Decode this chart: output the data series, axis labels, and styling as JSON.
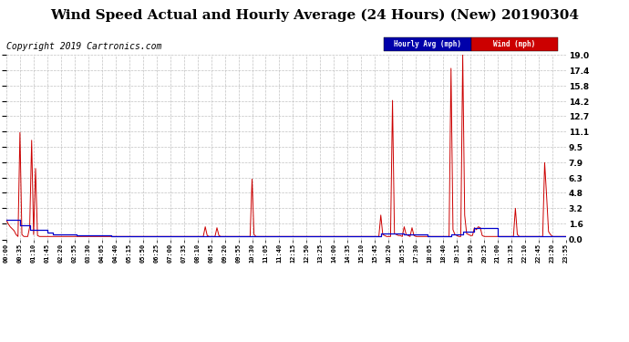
{
  "title": "Wind Speed Actual and Hourly Average (24 Hours) (New) 20190304",
  "copyright": "Copyright 2019 Cartronics.com",
  "ylabel_right_ticks": [
    0.0,
    1.6,
    3.2,
    4.8,
    6.3,
    7.9,
    9.5,
    11.1,
    12.7,
    14.2,
    15.8,
    17.4,
    19.0
  ],
  "ylim": [
    0.0,
    19.0
  ],
  "legend_labels": [
    "Hourly Avg (mph)",
    "Wind (mph)"
  ],
  "wind_color": "#cc0000",
  "hourly_color": "#0000cc",
  "bg_color": "#ffffff",
  "grid_color": "#bbbbbb",
  "title_fontsize": 11,
  "copyright_fontsize": 7,
  "wind_data": [
    [
      0,
      2.0
    ],
    [
      5,
      1.6
    ],
    [
      10,
      1.3
    ],
    [
      15,
      1.1
    ],
    [
      20,
      0.9
    ],
    [
      25,
      0.5
    ],
    [
      30,
      0.3
    ],
    [
      35,
      11.0
    ],
    [
      40,
      0.5
    ],
    [
      45,
      0.3
    ],
    [
      50,
      0.3
    ],
    [
      55,
      0.3
    ],
    [
      60,
      1.3
    ],
    [
      65,
      10.2
    ],
    [
      70,
      0.5
    ],
    [
      75,
      7.3
    ],
    [
      80,
      0.4
    ],
    [
      85,
      0.3
    ],
    [
      90,
      0.3
    ],
    [
      95,
      0.3
    ],
    [
      100,
      0.3
    ],
    [
      105,
      0.3
    ],
    [
      110,
      0.3
    ],
    [
      115,
      0.3
    ],
    [
      120,
      0.3
    ],
    [
      125,
      0.3
    ],
    [
      130,
      0.3
    ],
    [
      135,
      0.3
    ],
    [
      140,
      0.3
    ],
    [
      145,
      0.3
    ],
    [
      150,
      0.3
    ],
    [
      155,
      0.3
    ],
    [
      160,
      0.3
    ],
    [
      165,
      0.3
    ],
    [
      170,
      0.3
    ],
    [
      175,
      0.3
    ],
    [
      180,
      0.3
    ],
    [
      185,
      0.3
    ],
    [
      190,
      0.3
    ],
    [
      195,
      0.3
    ],
    [
      200,
      0.3
    ],
    [
      205,
      0.3
    ],
    [
      210,
      0.3
    ],
    [
      215,
      0.3
    ],
    [
      220,
      0.3
    ],
    [
      225,
      0.3
    ],
    [
      230,
      0.3
    ],
    [
      235,
      0.3
    ],
    [
      240,
      0.3
    ],
    [
      245,
      0.3
    ],
    [
      250,
      0.3
    ],
    [
      255,
      0.3
    ],
    [
      260,
      0.3
    ],
    [
      265,
      0.3
    ],
    [
      270,
      0.3
    ],
    [
      275,
      0.3
    ],
    [
      280,
      0.3
    ],
    [
      285,
      0.3
    ],
    [
      290,
      0.3
    ],
    [
      295,
      0.3
    ],
    [
      300,
      0.3
    ],
    [
      305,
      0.3
    ],
    [
      310,
      0.3
    ],
    [
      315,
      0.3
    ],
    [
      320,
      0.3
    ],
    [
      325,
      0.3
    ],
    [
      330,
      0.3
    ],
    [
      335,
      0.3
    ],
    [
      340,
      0.3
    ],
    [
      345,
      0.3
    ],
    [
      350,
      0.3
    ],
    [
      355,
      0.3
    ],
    [
      360,
      0.3
    ],
    [
      365,
      0.3
    ],
    [
      370,
      0.3
    ],
    [
      375,
      0.3
    ],
    [
      380,
      0.3
    ],
    [
      385,
      0.3
    ],
    [
      390,
      0.3
    ],
    [
      395,
      0.3
    ],
    [
      400,
      0.3
    ],
    [
      405,
      0.3
    ],
    [
      410,
      0.3
    ],
    [
      415,
      0.3
    ],
    [
      420,
      0.3
    ],
    [
      425,
      0.3
    ],
    [
      430,
      0.3
    ],
    [
      435,
      0.3
    ],
    [
      440,
      0.3
    ],
    [
      445,
      0.3
    ],
    [
      450,
      0.3
    ],
    [
      455,
      0.3
    ],
    [
      460,
      0.3
    ],
    [
      465,
      0.3
    ],
    [
      470,
      0.3
    ],
    [
      475,
      0.3
    ],
    [
      480,
      0.3
    ],
    [
      485,
      0.3
    ],
    [
      490,
      0.3
    ],
    [
      495,
      0.3
    ],
    [
      500,
      0.3
    ],
    [
      505,
      0.3
    ],
    [
      510,
      1.3
    ],
    [
      515,
      0.4
    ],
    [
      520,
      0.3
    ],
    [
      525,
      0.3
    ],
    [
      530,
      0.3
    ],
    [
      535,
      0.3
    ],
    [
      540,
      1.2
    ],
    [
      545,
      0.4
    ],
    [
      550,
      0.3
    ],
    [
      555,
      0.3
    ],
    [
      560,
      0.3
    ],
    [
      565,
      0.3
    ],
    [
      570,
      0.3
    ],
    [
      575,
      0.3
    ],
    [
      580,
      0.3
    ],
    [
      585,
      0.3
    ],
    [
      590,
      0.3
    ],
    [
      595,
      0.3
    ],
    [
      600,
      0.3
    ],
    [
      605,
      0.3
    ],
    [
      610,
      0.3
    ],
    [
      615,
      0.3
    ],
    [
      620,
      0.3
    ],
    [
      625,
      0.3
    ],
    [
      630,
      6.2
    ],
    [
      635,
      0.5
    ],
    [
      640,
      0.3
    ],
    [
      645,
      0.3
    ],
    [
      650,
      0.3
    ],
    [
      655,
      0.3
    ],
    [
      660,
      0.3
    ],
    [
      665,
      0.3
    ],
    [
      670,
      0.3
    ],
    [
      675,
      0.3
    ],
    [
      680,
      0.3
    ],
    [
      685,
      0.3
    ],
    [
      690,
      0.3
    ],
    [
      695,
      0.3
    ],
    [
      700,
      0.3
    ],
    [
      705,
      0.3
    ],
    [
      710,
      0.3
    ],
    [
      715,
      0.3
    ],
    [
      720,
      0.3
    ],
    [
      725,
      0.3
    ],
    [
      730,
      0.3
    ],
    [
      735,
      0.3
    ],
    [
      740,
      0.3
    ],
    [
      745,
      0.3
    ],
    [
      750,
      0.3
    ],
    [
      755,
      0.3
    ],
    [
      760,
      0.3
    ],
    [
      765,
      0.3
    ],
    [
      770,
      0.3
    ],
    [
      775,
      0.3
    ],
    [
      780,
      0.3
    ],
    [
      785,
      0.3
    ],
    [
      790,
      0.3
    ],
    [
      795,
      0.3
    ],
    [
      800,
      0.3
    ],
    [
      805,
      0.3
    ],
    [
      810,
      0.3
    ],
    [
      815,
      0.3
    ],
    [
      820,
      0.3
    ],
    [
      825,
      0.3
    ],
    [
      830,
      0.3
    ],
    [
      835,
      0.3
    ],
    [
      840,
      0.3
    ],
    [
      845,
      0.3
    ],
    [
      850,
      0.3
    ],
    [
      855,
      0.3
    ],
    [
      860,
      0.3
    ],
    [
      865,
      0.3
    ],
    [
      870,
      0.3
    ],
    [
      875,
      0.3
    ],
    [
      880,
      0.3
    ],
    [
      885,
      0.3
    ],
    [
      890,
      0.3
    ],
    [
      895,
      0.3
    ],
    [
      900,
      0.3
    ],
    [
      905,
      0.3
    ],
    [
      910,
      0.3
    ],
    [
      915,
      0.3
    ],
    [
      920,
      0.3
    ],
    [
      925,
      0.3
    ],
    [
      930,
      0.3
    ],
    [
      935,
      0.3
    ],
    [
      940,
      0.3
    ],
    [
      945,
      0.3
    ],
    [
      950,
      0.3
    ],
    [
      955,
      0.3
    ],
    [
      960,
      2.5
    ],
    [
      965,
      0.5
    ],
    [
      970,
      0.4
    ],
    [
      975,
      0.3
    ],
    [
      980,
      0.3
    ],
    [
      985,
      0.3
    ],
    [
      990,
      14.3
    ],
    [
      995,
      0.6
    ],
    [
      1000,
      0.5
    ],
    [
      1005,
      0.4
    ],
    [
      1010,
      0.4
    ],
    [
      1015,
      0.3
    ],
    [
      1020,
      1.3
    ],
    [
      1025,
      0.5
    ],
    [
      1030,
      0.4
    ],
    [
      1035,
      0.3
    ],
    [
      1040,
      1.2
    ],
    [
      1045,
      0.4
    ],
    [
      1050,
      0.3
    ],
    [
      1055,
      0.3
    ],
    [
      1060,
      0.3
    ],
    [
      1065,
      0.3
    ],
    [
      1070,
      0.3
    ],
    [
      1075,
      0.3
    ],
    [
      1080,
      0.3
    ],
    [
      1085,
      0.3
    ],
    [
      1090,
      0.3
    ],
    [
      1095,
      0.3
    ],
    [
      1100,
      0.3
    ],
    [
      1105,
      0.3
    ],
    [
      1110,
      0.3
    ],
    [
      1115,
      0.3
    ],
    [
      1120,
      0.3
    ],
    [
      1125,
      0.3
    ],
    [
      1130,
      0.3
    ],
    [
      1135,
      0.3
    ],
    [
      1140,
      17.6
    ],
    [
      1145,
      1.0
    ],
    [
      1150,
      0.5
    ],
    [
      1155,
      0.4
    ],
    [
      1160,
      0.3
    ],
    [
      1165,
      0.3
    ],
    [
      1170,
      19.0
    ],
    [
      1175,
      2.5
    ],
    [
      1180,
      0.6
    ],
    [
      1185,
      0.5
    ],
    [
      1190,
      0.4
    ],
    [
      1195,
      0.4
    ],
    [
      1200,
      1.2
    ],
    [
      1205,
      1.0
    ],
    [
      1210,
      1.3
    ],
    [
      1215,
      1.2
    ],
    [
      1220,
      0.4
    ],
    [
      1225,
      0.3
    ],
    [
      1230,
      0.3
    ],
    [
      1235,
      0.3
    ],
    [
      1240,
      0.3
    ],
    [
      1245,
      0.3
    ],
    [
      1250,
      0.3
    ],
    [
      1255,
      0.3
    ],
    [
      1260,
      0.3
    ],
    [
      1265,
      0.3
    ],
    [
      1270,
      0.3
    ],
    [
      1275,
      0.3
    ],
    [
      1280,
      0.3
    ],
    [
      1285,
      0.3
    ],
    [
      1290,
      0.3
    ],
    [
      1295,
      0.3
    ],
    [
      1300,
      0.3
    ],
    [
      1305,
      3.2
    ],
    [
      1310,
      0.5
    ],
    [
      1315,
      0.3
    ],
    [
      1320,
      0.3
    ],
    [
      1325,
      0.3
    ],
    [
      1330,
      0.3
    ],
    [
      1335,
      0.3
    ],
    [
      1340,
      0.3
    ],
    [
      1345,
      0.3
    ],
    [
      1350,
      0.3
    ],
    [
      1355,
      0.3
    ],
    [
      1360,
      0.3
    ],
    [
      1365,
      0.3
    ],
    [
      1370,
      0.3
    ],
    [
      1375,
      0.3
    ],
    [
      1380,
      7.9
    ],
    [
      1385,
      4.5
    ],
    [
      1390,
      0.8
    ],
    [
      1395,
      0.5
    ],
    [
      1400,
      0.3
    ],
    [
      1405,
      0.3
    ],
    [
      1410,
      0.3
    ],
    [
      1415,
      0.3
    ],
    [
      1420,
      0.3
    ],
    [
      1425,
      0.3
    ],
    [
      1430,
      0.3
    ],
    [
      1435,
      0.3
    ]
  ],
  "hourly_data": [
    [
      0,
      2.0
    ],
    [
      35,
      1.5
    ],
    [
      60,
      1.0
    ],
    [
      105,
      0.7
    ],
    [
      120,
      0.5
    ],
    [
      180,
      0.4
    ],
    [
      270,
      0.3
    ],
    [
      360,
      0.3
    ],
    [
      420,
      0.3
    ],
    [
      480,
      0.3
    ],
    [
      540,
      0.3
    ],
    [
      570,
      0.3
    ],
    [
      600,
      0.3
    ],
    [
      660,
      0.3
    ],
    [
      720,
      0.3
    ],
    [
      780,
      0.3
    ],
    [
      840,
      0.3
    ],
    [
      900,
      0.3
    ],
    [
      960,
      0.6
    ],
    [
      990,
      0.6
    ],
    [
      1020,
      0.5
    ],
    [
      1080,
      0.3
    ],
    [
      1140,
      0.5
    ],
    [
      1170,
      0.8
    ],
    [
      1200,
      1.2
    ],
    [
      1220,
      1.2
    ],
    [
      1260,
      0.3
    ],
    [
      1320,
      0.3
    ],
    [
      1380,
      0.3
    ],
    [
      1435,
      0.3
    ]
  ],
  "xtick_minutes": [
    0,
    35,
    70,
    105,
    140,
    175,
    210,
    245,
    280,
    315,
    350,
    385,
    420,
    455,
    490,
    525,
    560,
    595,
    630,
    665,
    700,
    735,
    770,
    805,
    840,
    875,
    910,
    945,
    980,
    1015,
    1050,
    1085,
    1120,
    1155,
    1190,
    1225,
    1260,
    1295,
    1330,
    1365,
    1400,
    1435
  ],
  "xtick_labels": [
    "00:00",
    "00:35",
    "01:10",
    "01:45",
    "02:20",
    "02:55",
    "03:30",
    "04:05",
    "04:40",
    "05:15",
    "05:50",
    "06:25",
    "07:00",
    "07:35",
    "08:10",
    "08:45",
    "09:20",
    "09:55",
    "10:30",
    "11:05",
    "11:40",
    "12:15",
    "12:50",
    "13:25",
    "14:00",
    "14:35",
    "15:10",
    "15:45",
    "16:20",
    "16:55",
    "17:30",
    "18:05",
    "18:40",
    "19:15",
    "19:50",
    "20:25",
    "21:00",
    "21:35",
    "22:10",
    "22:45",
    "23:20",
    "23:55"
  ]
}
